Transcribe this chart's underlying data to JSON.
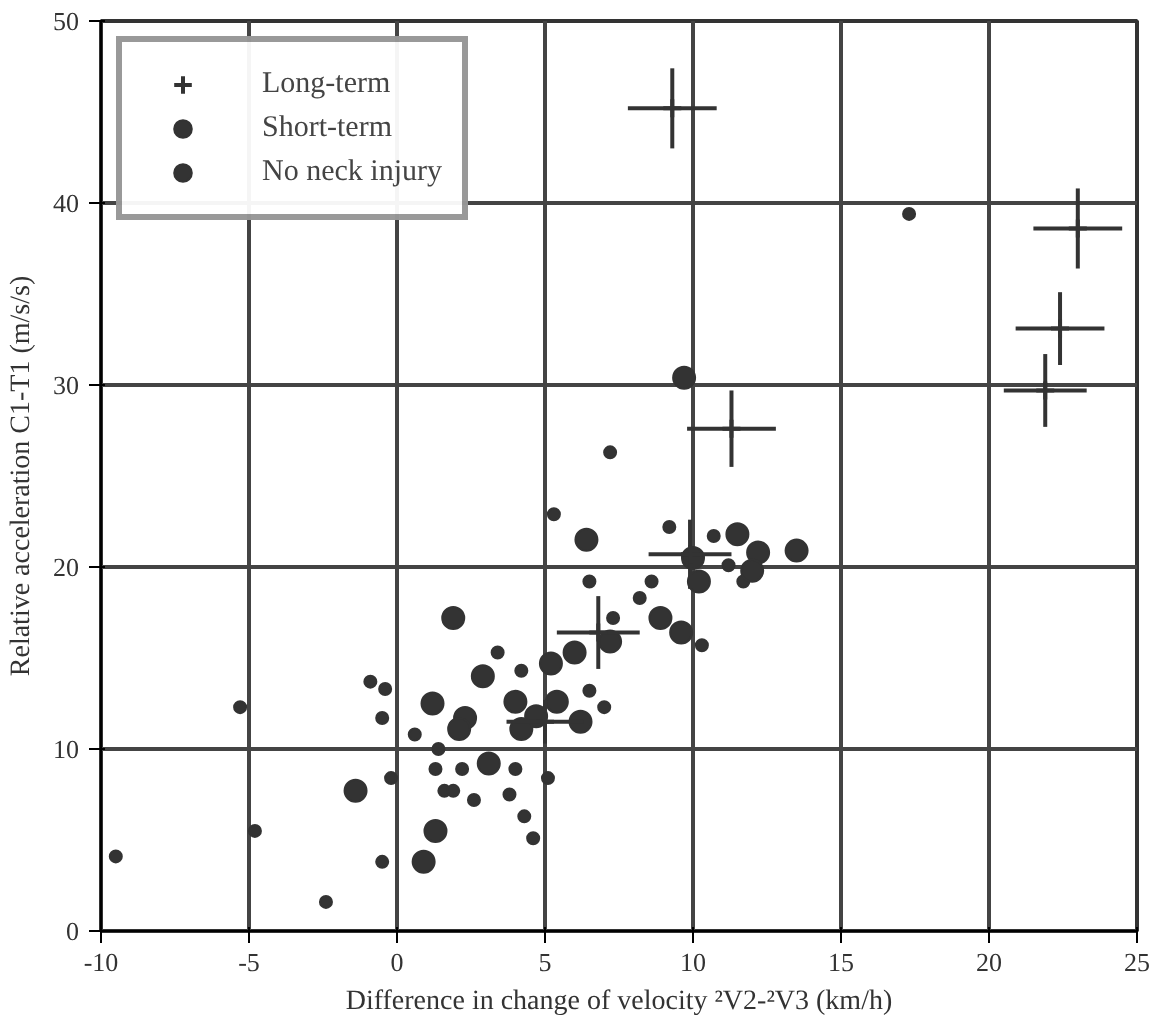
{
  "chart_data": {
    "type": "scatter",
    "xlabel": "Difference in change of velocity ²V2-²V3 (km/h)",
    "ylabel": "Relative acceleration C1-T1 (m/s/s)",
    "xlim": [
      -10,
      25
    ],
    "xticks": [
      -10,
      -5,
      0,
      5,
      10,
      15,
      20,
      25
    ],
    "ylim": [
      0,
      50
    ],
    "yticks": [
      0,
      10,
      20,
      30,
      40,
      50
    ],
    "grid": true,
    "legend": "top left",
    "series": [
      {
        "name": "Long-term",
        "color": "#333333",
        "marker": "cross",
        "x": [
          9.3,
          23.0,
          22.4,
          21.9,
          11.3,
          6.8,
          9.9,
          5.0
        ],
        "values": [
          45.2,
          38.6,
          33.1,
          29.7,
          27.6,
          16.4,
          20.7,
          11.5
        ],
        "errors": [
          2.2,
          2.2,
          2.0,
          2.0,
          2.1,
          2.0,
          1.9,
          1.2
        ],
        "xerrors": [
          1.5,
          1.5,
          1.5,
          1.4,
          1.5,
          1.4,
          1.4,
          1.3
        ]
      },
      {
        "name": "Short-term",
        "color": "#333333",
        "marker": "circle",
        "x": [
          -1.4,
          6.4,
          11.5,
          12.2,
          13.5,
          10.0,
          10.2,
          8.9,
          9.6,
          1.9,
          6.0,
          5.2,
          7.2,
          2.9,
          1.2,
          2.3,
          2.1,
          4.0,
          4.7,
          5.4,
          6.2,
          3.1,
          1.3,
          0.9,
          12.0,
          4.2,
          9.7
        ],
        "values": [
          7.7,
          21.5,
          21.8,
          20.8,
          20.9,
          20.5,
          19.2,
          17.2,
          16.4,
          17.2,
          15.3,
          14.7,
          15.9,
          14.0,
          12.5,
          11.7,
          11.1,
          12.6,
          11.8,
          12.6,
          11.5,
          9.2,
          5.5,
          3.8,
          19.8,
          11.1,
          30.4
        ]
      },
      {
        "name": "No neck injury",
        "color": "#333333",
        "marker": "circle",
        "x": [
          17.3,
          7.2,
          -9.5,
          -5.3,
          -4.8,
          -2.4,
          -0.5,
          -0.2,
          -0.5,
          -0.4,
          -0.9,
          5.3,
          9.2,
          10.7,
          11.2,
          6.5,
          8.6,
          8.2,
          7.3,
          10.3,
          3.4,
          0.6,
          1.4,
          1.3,
          2.6,
          3.8,
          4.3,
          4.6,
          5.1,
          7.0,
          6.5,
          4.2,
          4.0,
          1.6,
          1.9,
          2.2,
          11.7
        ],
        "values": [
          39.4,
          26.3,
          4.1,
          12.3,
          5.5,
          1.6,
          3.8,
          8.4,
          11.7,
          13.3,
          13.7,
          22.9,
          22.2,
          21.7,
          20.1,
          19.2,
          19.2,
          18.3,
          17.2,
          15.7,
          15.3,
          10.8,
          10.0,
          8.9,
          7.2,
          7.5,
          6.3,
          5.1,
          8.4,
          12.3,
          13.2,
          14.3,
          8.9,
          7.7,
          7.7,
          8.9,
          19.2
        ]
      }
    ]
  }
}
